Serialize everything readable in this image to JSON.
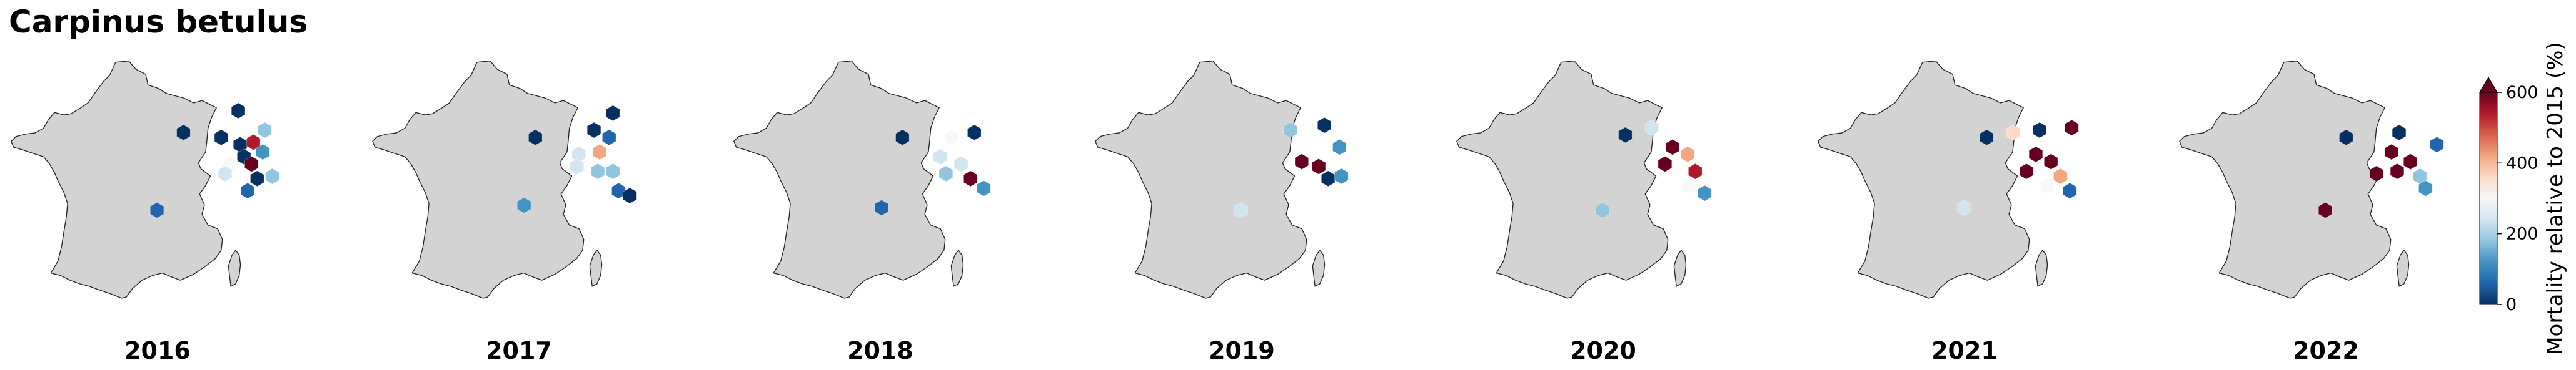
{
  "title": "Carpinus betulus",
  "colorbar": {
    "label": "Mortality relative to 2015 (%)",
    "ticks": [
      "0",
      "200",
      "400",
      "600"
    ],
    "tick_values": [
      0,
      200,
      400,
      600
    ],
    "extend": "max",
    "colormap": "RdBu_r",
    "colors": [
      "#053061",
      "#2166ac",
      "#4393c3",
      "#92c5de",
      "#d1e5f0",
      "#f7f7f7",
      "#fddbc7",
      "#f4a582",
      "#d6604d",
      "#b2182b",
      "#67001f"
    ]
  },
  "land_color": "#d3d3d3",
  "map_type": "hexbin choropleth of France",
  "maps": [
    {
      "year": "2016",
      "cells": [
        {
          "lon": 4.6,
          "lat": 49.1,
          "v": 20
        },
        {
          "lon": 6.0,
          "lat": 48.3,
          "v": 200
        },
        {
          "lon": 3.7,
          "lat": 48.0,
          "v": 5
        },
        {
          "lon": 4.7,
          "lat": 47.7,
          "v": 10
        },
        {
          "lon": 5.4,
          "lat": 47.8,
          "v": 600
        },
        {
          "lon": 4.9,
          "lat": 47.2,
          "v": 0
        },
        {
          "lon": 5.3,
          "lat": 46.9,
          "v": 650
        },
        {
          "lon": 4.2,
          "lat": 46.9,
          "v": 360
        },
        {
          "lon": 3.9,
          "lat": 46.5,
          "v": 310
        },
        {
          "lon": 5.6,
          "lat": 46.3,
          "v": 30
        },
        {
          "lon": 5.1,
          "lat": 45.8,
          "v": 120
        },
        {
          "lon": 1.7,
          "lat": 48.2,
          "v": 15
        },
        {
          "lon": 6.4,
          "lat": 46.4,
          "v": 250
        },
        {
          "lon": 0.3,
          "lat": 45.0,
          "v": 100
        },
        {
          "lon": 5.9,
          "lat": 47.4,
          "v": 170
        }
      ]
    },
    {
      "year": "2017",
      "cells": [
        {
          "lon": 5.3,
          "lat": 49.0,
          "v": 10
        },
        {
          "lon": 4.3,
          "lat": 48.3,
          "v": 30
        },
        {
          "lon": 5.1,
          "lat": 48.0,
          "v": 80
        },
        {
          "lon": 3.5,
          "lat": 47.3,
          "v": 320
        },
        {
          "lon": 4.6,
          "lat": 47.4,
          "v": 520
        },
        {
          "lon": 3.4,
          "lat": 46.8,
          "v": 270
        },
        {
          "lon": 4.5,
          "lat": 46.6,
          "v": 240
        },
        {
          "lon": 5.3,
          "lat": 46.6,
          "v": 210
        },
        {
          "lon": 5.6,
          "lat": 45.8,
          "v": 110
        },
        {
          "lon": 1.2,
          "lat": 48.0,
          "v": 15
        },
        {
          "lon": 0.6,
          "lat": 45.2,
          "v": 190
        },
        {
          "lon": 6.2,
          "lat": 45.6,
          "v": 60
        }
      ]
    },
    {
      "year": "2018",
      "cells": [
        {
          "lon": 5.3,
          "lat": 48.2,
          "v": 20
        },
        {
          "lon": 4.1,
          "lat": 48.0,
          "v": 350
        },
        {
          "lon": 3.5,
          "lat": 47.2,
          "v": 320
        },
        {
          "lon": 4.6,
          "lat": 46.9,
          "v": 280
        },
        {
          "lon": 5.1,
          "lat": 46.3,
          "v": 700
        },
        {
          "lon": 3.8,
          "lat": 46.5,
          "v": 250
        },
        {
          "lon": 1.5,
          "lat": 48.0,
          "v": 10
        },
        {
          "lon": 0.4,
          "lat": 45.1,
          "v": 110
        },
        {
          "lon": 5.8,
          "lat": 45.9,
          "v": 150
        }
      ]
    },
    {
      "year": "2019",
      "cells": [
        {
          "lon": 4.7,
          "lat": 48.5,
          "v": 20
        },
        {
          "lon": 3.5,
          "lat": 47.0,
          "v": 650
        },
        {
          "lon": 4.4,
          "lat": 46.8,
          "v": 700
        },
        {
          "lon": 4.9,
          "lat": 46.3,
          "v": 40
        },
        {
          "lon": 5.6,
          "lat": 46.4,
          "v": 180
        },
        {
          "lon": 5.5,
          "lat": 47.6,
          "v": 150
        },
        {
          "lon": 2.9,
          "lat": 48.3,
          "v": 240
        },
        {
          "lon": 0.3,
          "lat": 45.0,
          "v": 270
        }
      ]
    },
    {
      "year": "2020",
      "cells": [
        {
          "lon": 4.0,
          "lat": 47.6,
          "v": 650
        },
        {
          "lon": 4.8,
          "lat": 47.3,
          "v": 520
        },
        {
          "lon": 3.6,
          "lat": 46.9,
          "v": 700
        },
        {
          "lon": 5.2,
          "lat": 46.6,
          "v": 600
        },
        {
          "lon": 4.9,
          "lat": 46.0,
          "v": 380
        },
        {
          "lon": 5.7,
          "lat": 45.7,
          "v": 150
        },
        {
          "lon": 2.9,
          "lat": 48.4,
          "v": 330
        },
        {
          "lon": 1.5,
          "lat": 48.1,
          "v": 10
        },
        {
          "lon": 0.3,
          "lat": 45.0,
          "v": 230
        }
      ]
    },
    {
      "year": "2021",
      "cells": [
        {
          "lon": 4.1,
          "lat": 47.3,
          "v": 650
        },
        {
          "lon": 4.9,
          "lat": 47.0,
          "v": 700
        },
        {
          "lon": 3.6,
          "lat": 46.6,
          "v": 620
        },
        {
          "lon": 5.4,
          "lat": 46.4,
          "v": 500
        },
        {
          "lon": 4.7,
          "lat": 46.0,
          "v": 350
        },
        {
          "lon": 5.9,
          "lat": 45.8,
          "v": 70
        },
        {
          "lon": 4.3,
          "lat": 48.3,
          "v": 15
        },
        {
          "lon": 6.0,
          "lat": 48.4,
          "v": 660
        },
        {
          "lon": 2.9,
          "lat": 48.2,
          "v": 420
        },
        {
          "lon": 1.5,
          "lat": 48.0,
          "v": 10
        },
        {
          "lon": 0.3,
          "lat": 45.1,
          "v": 290
        }
      ]
    },
    {
      "year": "2022",
      "cells": [
        {
          "lon": 3.8,
          "lat": 47.4,
          "v": 700
        },
        {
          "lon": 4.8,
          "lat": 47.0,
          "v": 720
        },
        {
          "lon": 4.1,
          "lat": 46.6,
          "v": 650
        },
        {
          "lon": 5.3,
          "lat": 46.4,
          "v": 260
        },
        {
          "lon": 5.6,
          "lat": 45.9,
          "v": 180
        },
        {
          "lon": 6.2,
          "lat": 47.7,
          "v": 100
        },
        {
          "lon": 3.0,
          "lat": 46.5,
          "v": 630
        },
        {
          "lon": 4.2,
          "lat": 48.2,
          "v": 15
        },
        {
          "lon": 1.4,
          "lat": 48.0,
          "v": 10
        },
        {
          "lon": 0.3,
          "lat": 45.0,
          "v": 700
        }
      ]
    }
  ]
}
